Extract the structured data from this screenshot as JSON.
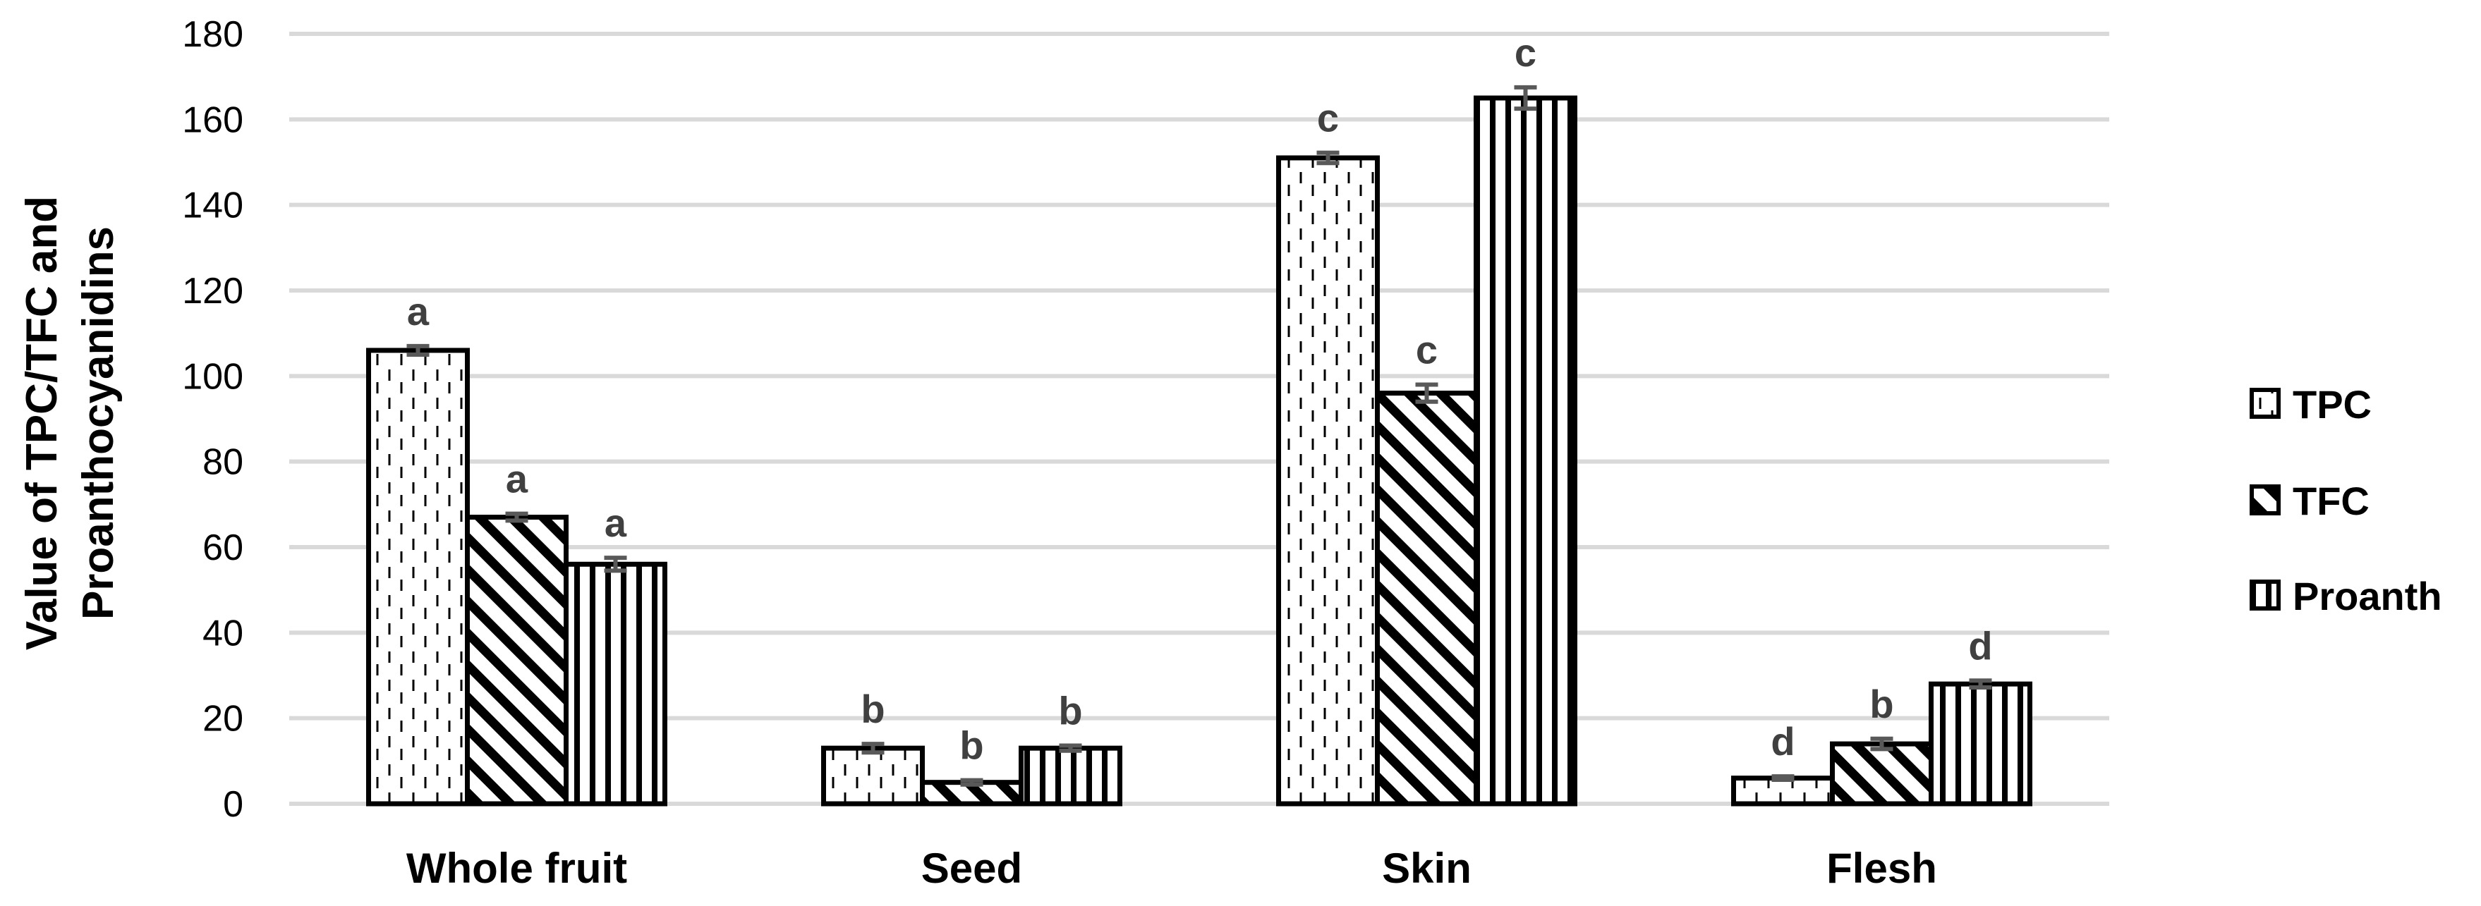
{
  "chart_data": {
    "type": "bar",
    "title": "",
    "xlabel": "",
    "ylabel_lines": [
      "Value of TPC/TFC and",
      "Proanthocyanidins"
    ],
    "ylim": [
      0,
      180
    ],
    "yticks": [
      0,
      20,
      40,
      60,
      80,
      100,
      120,
      140,
      160,
      180
    ],
    "grid": true,
    "legend_position": "right",
    "categories": [
      "Whole fruit",
      "Seed",
      "Skin",
      "Flesh"
    ],
    "series": [
      {
        "name": "TPC",
        "pattern": "dotted-dashed",
        "values": [
          106,
          13,
          151,
          6
        ],
        "errors": [
          1.0,
          1.0,
          1.2,
          0.4
        ],
        "labels": [
          "a",
          "b",
          "c",
          "d"
        ]
      },
      {
        "name": "TFC",
        "pattern": "diagonal-stripes",
        "values": [
          67,
          5,
          96,
          14
        ],
        "errors": [
          0.8,
          0.5,
          2.0,
          1.2
        ],
        "labels": [
          "a",
          "b",
          "c",
          "b"
        ]
      },
      {
        "name": "Proanth",
        "pattern": "vertical-stripes",
        "values": [
          56,
          13,
          165,
          28
        ],
        "errors": [
          1.5,
          0.6,
          2.5,
          0.8
        ],
        "labels": [
          "a",
          "b",
          "c",
          "d"
        ]
      }
    ]
  }
}
